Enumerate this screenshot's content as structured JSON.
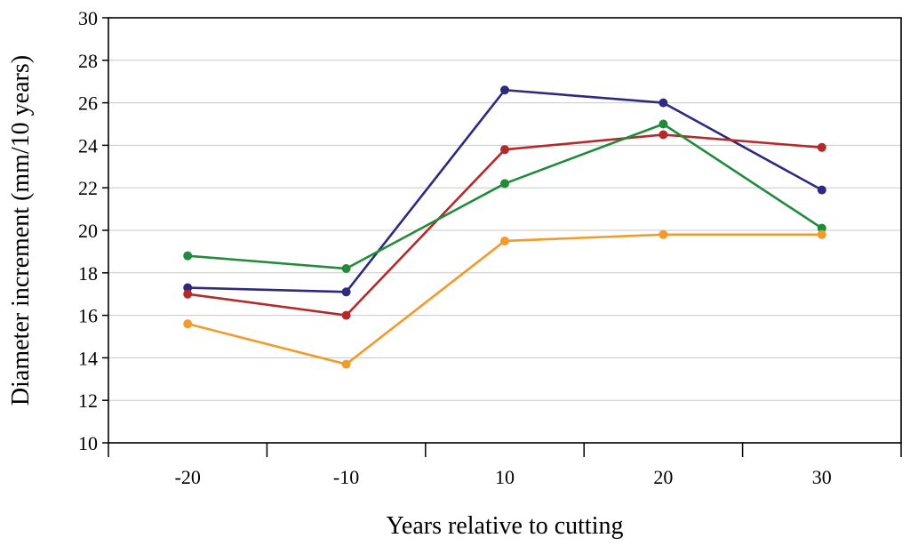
{
  "chart_data": {
    "type": "line",
    "title": "",
    "xlabel": "Years relative to cutting",
    "ylabel": "Diameter increment (mm/10 years)",
    "categories": [
      "-20",
      "-10",
      "10",
      "20",
      "30"
    ],
    "ylim": [
      10,
      30
    ],
    "yticks": [
      10,
      12,
      14,
      16,
      18,
      20,
      22,
      24,
      26,
      28,
      30
    ],
    "grid": "horizontal",
    "legend": "none",
    "series": [
      {
        "name": "navy series",
        "color": "#2e2a7f",
        "values": [
          17.3,
          17.1,
          26.6,
          26.0,
          21.9
        ]
      },
      {
        "name": "red series",
        "color": "#b5292a",
        "values": [
          17.0,
          16.0,
          23.8,
          24.5,
          23.9
        ]
      },
      {
        "name": "green series",
        "color": "#228b3b",
        "values": [
          18.8,
          18.2,
          22.2,
          25.0,
          20.1
        ]
      },
      {
        "name": "orange series",
        "color": "#f39a2b",
        "values": [
          15.6,
          13.7,
          19.5,
          19.8,
          19.8
        ]
      }
    ]
  }
}
